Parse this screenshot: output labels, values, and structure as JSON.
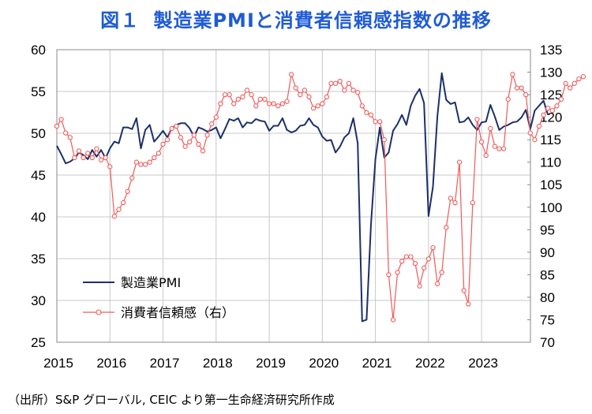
{
  "title": {
    "figure_label": "図１",
    "text": "製造業PMIと消費者信頼感指数の推移"
  },
  "source": "（出所）S&P グローバル, CEIC より第一生命経済研究所作成",
  "colors": {
    "pmi": "#1c2f6b",
    "confidence": "#f05a5a",
    "title": "#1f5bd6",
    "grid": "#c8c8c8"
  },
  "chart_data": {
    "type": "line",
    "title": "製造業PMIと消費者信頼感指数の推移",
    "x_label": "",
    "x_ticks": [
      "2015",
      "2016",
      "2017",
      "2018",
      "2019",
      "2020",
      "2021",
      "2022",
      "2023"
    ],
    "x_range": [
      2015.0,
      2023.92
    ],
    "left_axis": {
      "label": "",
      "range": [
        25,
        60
      ],
      "ticks": [
        "25",
        "30",
        "35",
        "40",
        "45",
        "50",
        "55",
        "60"
      ]
    },
    "right_axis": {
      "label": "",
      "range": [
        70,
        135
      ],
      "ticks": [
        "70",
        "75",
        "80",
        "85",
        "90",
        "95",
        "100",
        "105",
        "110",
        "115",
        "120",
        "125",
        "130",
        "135"
      ]
    },
    "grid": true,
    "legend_position": "bottom-left",
    "series": [
      {
        "name": "製造業PMI",
        "axis": "left",
        "marker": "none",
        "start": "2015-01",
        "values": [
          48.5,
          47.5,
          46.4,
          46.6,
          47.0,
          47.7,
          47.4,
          46.9,
          48.0,
          47.2,
          48.0,
          47.0,
          48.2,
          49.0,
          48.8,
          50.7,
          50.7,
          50.5,
          51.8,
          48.2,
          50.4,
          51.0,
          49.0,
          49.6,
          50.3,
          49.5,
          50.6,
          51.0,
          51.2,
          51.2,
          50.6,
          49.6,
          50.7,
          50.5,
          50.2,
          50.4,
          50.7,
          49.4,
          50.5,
          51.7,
          51.5,
          51.8,
          50.7,
          51.3,
          51.2,
          51.7,
          51.5,
          51.4,
          50.3,
          50.9,
          50.9,
          51.8,
          50.4,
          50.1,
          50.3,
          50.9,
          51.0,
          51.8,
          51.0,
          50.7,
          49.6,
          49.1,
          49.2,
          47.7,
          48.4,
          49.5,
          50.0,
          51.8,
          48.8,
          27.5,
          27.7,
          39.1,
          46.9,
          50.7,
          47.1,
          47.7,
          50.3,
          51.1,
          52.2,
          51.0,
          53.3,
          54.5,
          55.3,
          53.6,
          40.1,
          43.6,
          52.0,
          57.2,
          54.0,
          53.5,
          53.7,
          51.3,
          51.4,
          51.9,
          51.0,
          50.4,
          51.3,
          51.4,
          53.4,
          52.0,
          50.4,
          50.8,
          51.0,
          51.3,
          51.4,
          51.9,
          52.8,
          50.5,
          52.7,
          53.3,
          53.9,
          52.2
        ]
      },
      {
        "name": "消費者信頼感（右）",
        "axis": "right",
        "marker": "circle",
        "start": "2015-01",
        "values": [
          118.0,
          119.5,
          116.5,
          115.5,
          111.0,
          112.5,
          111.0,
          112.0,
          111.0,
          113.0,
          110.5,
          111.0,
          109.0,
          98.0,
          99.5,
          101.0,
          103.5,
          106.5,
          110.0,
          109.5,
          109.5,
          110.0,
          111.0,
          112.0,
          114.0,
          115.0,
          117.5,
          118.0,
          115.5,
          113.5,
          114.5,
          116.0,
          114.0,
          112.5,
          116.0,
          118.5,
          120.0,
          123.0,
          125.0,
          125.0,
          123.0,
          124.0,
          124.5,
          126.0,
          125.0,
          122.5,
          124.0,
          124.0,
          123.0,
          123.0,
          122.5,
          123.0,
          123.5,
          129.5,
          126.5,
          125.0,
          126.0,
          124.5,
          122.0,
          122.5,
          123.0,
          124.5,
          127.5,
          127.5,
          128.0,
          126.0,
          127.5,
          126.0,
          125.5,
          122.5,
          121.0,
          120.5,
          119.0,
          119.0,
          115.0,
          85.0,
          75.0,
          85.5,
          88.0,
          89.0,
          89.0,
          87.5,
          82.5,
          86.5,
          88.5,
          91.0,
          83.0,
          85.5,
          95.5,
          102.0,
          101.0,
          110.0,
          81.5,
          78.5,
          101.0,
          119.5,
          114.5,
          111.5,
          117.5,
          113.5,
          113.0,
          113.0,
          124.0,
          129.5,
          126.5,
          126.5,
          125.0,
          116.5,
          115.0,
          118.0,
          120.5,
          122.0,
          121.5,
          122.5,
          124.0,
          127.5,
          126.5,
          127.5,
          128.5,
          129.0
        ]
      }
    ]
  },
  "legend": {
    "pmi_label": "製造業PMI",
    "confidence_label": "消費者信頼感（右）"
  }
}
